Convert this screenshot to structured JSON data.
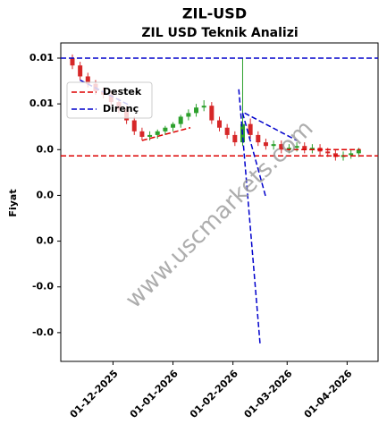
{
  "chart_data": {
    "type": "candlestick",
    "title": "ZIL-USD",
    "subtitle": "ZIL USD Teknik Analizi",
    "y_label": "Fiyat",
    "watermark": "www.uscmarkets.com",
    "up_color": "#2ca02c",
    "down_color": "#d62728",
    "x": [
      "2025-11-10",
      "2025-11-14",
      "2025-11-18",
      "2025-11-22",
      "2025-11-26",
      "2025-11-30",
      "2025-12-04",
      "2025-12-08",
      "2025-12-12",
      "2025-12-16",
      "2025-12-20",
      "2025-12-24",
      "2025-12-28",
      "2026-01-01",
      "2026-01-05",
      "2026-01-09",
      "2026-01-13",
      "2026-01-17",
      "2026-01-21",
      "2026-01-25",
      "2026-01-29",
      "2026-02-02",
      "2026-02-06",
      "2026-02-10",
      "2026-02-14",
      "2026-02-18",
      "2026-02-22",
      "2026-02-26",
      "2026-03-02",
      "2026-03-06",
      "2026-03-10",
      "2026-03-14",
      "2026-03-18",
      "2026-03-22",
      "2026-03-26",
      "2026-03-30",
      "2026-04-03",
      "2026-04-07"
    ],
    "open": [
      0.01,
      0.0096,
      0.009,
      0.0086,
      0.0082,
      0.008,
      0.0076,
      0.0072,
      0.0066,
      0.006,
      0.0057,
      0.0058,
      0.006,
      0.0062,
      0.0064,
      0.0068,
      0.007,
      0.0073,
      0.0074,
      0.0066,
      0.0062,
      0.0058,
      0.0054,
      0.0064,
      0.0058,
      0.0054,
      0.0052,
      0.0053,
      0.005,
      0.0051,
      0.0052,
      0.005,
      0.0051,
      0.0049,
      0.0048,
      0.0046,
      0.0047,
      0.0048
    ],
    "high": [
      0.0102,
      0.0098,
      0.0092,
      0.0088,
      0.0084,
      0.0082,
      0.0078,
      0.0074,
      0.0068,
      0.0062,
      0.006,
      0.0061,
      0.0063,
      0.0065,
      0.0069,
      0.0072,
      0.0075,
      0.0077,
      0.0076,
      0.0068,
      0.0064,
      0.006,
      0.01,
      0.0067,
      0.006,
      0.0056,
      0.0055,
      0.0055,
      0.0053,
      0.0054,
      0.0054,
      0.0053,
      0.0053,
      0.0051,
      0.005,
      0.0049,
      0.005,
      0.0051
    ],
    "low": [
      0.0094,
      0.0088,
      0.0084,
      0.008,
      0.0078,
      0.0074,
      0.007,
      0.0064,
      0.0058,
      0.0055,
      0.0055,
      0.0056,
      0.0058,
      0.006,
      0.0062,
      0.0066,
      0.0068,
      0.0071,
      0.0064,
      0.006,
      0.0056,
      0.0052,
      0.0052,
      0.0056,
      0.0052,
      0.005,
      0.005,
      0.0048,
      0.0048,
      0.0049,
      0.0048,
      0.0048,
      0.0047,
      0.0046,
      0.0044,
      0.0044,
      0.0045,
      0.0046
    ],
    "close": [
      0.0096,
      0.009,
      0.0086,
      0.0082,
      0.008,
      0.0076,
      0.0072,
      0.0066,
      0.006,
      0.0057,
      0.0058,
      0.006,
      0.0062,
      0.0064,
      0.0068,
      0.007,
      0.0073,
      0.0074,
      0.0066,
      0.0062,
      0.0058,
      0.0054,
      0.0064,
      0.0058,
      0.0054,
      0.0052,
      0.0053,
      0.005,
      0.0051,
      0.0052,
      0.005,
      0.0051,
      0.0049,
      0.0048,
      0.0046,
      0.0047,
      0.0048,
      0.005
    ],
    "series": [
      {
        "name": "Destek",
        "color": "#dd0000",
        "lines": [
          {
            "x": [
              "2025-11-04",
              "2026-04-17"
            ],
            "values": [
              0.00466,
              0.00466
            ]
          },
          {
            "x": [
              "2025-12-16",
              "2026-01-10"
            ],
            "values": [
              0.0055,
              0.0062
            ]
          },
          {
            "x": [
              "2026-02-28",
              "2026-04-08"
            ],
            "values": [
              0.005,
              0.005
            ]
          }
        ]
      },
      {
        "name": "Direnç",
        "color": "#0000cc",
        "lines": [
          {
            "x": [
              "2025-11-04",
              "2026-04-17"
            ],
            "values": [
              0.01,
              0.01
            ]
          },
          {
            "x": [
              "2025-11-14",
              "2025-12-10"
            ],
            "values": [
              0.0088,
              0.0074
            ]
          },
          {
            "x": [
              "2026-02-04",
              "2026-02-15"
            ],
            "values": [
              0.0083,
              -0.0056
            ]
          },
          {
            "x": [
              "2026-02-06",
              "2026-02-18"
            ],
            "values": [
              0.007,
              0.0024
            ]
          },
          {
            "x": [
              "2026-02-07",
              "2026-03-06"
            ],
            "values": [
              0.007,
              0.0055
            ]
          }
        ]
      }
    ],
    "xlim": [
      "2025-11-04",
      "2026-04-17"
    ],
    "xticks": [
      {
        "value": "2025-12-01",
        "label": "01-12-2025"
      },
      {
        "value": "2026-01-01",
        "label": "01-01-2026"
      },
      {
        "value": "2026-02-01",
        "label": "01-02-2026"
      },
      {
        "value": "2026-03-01",
        "label": "01-03-2026"
      },
      {
        "value": "2026-04-01",
        "label": "01-04-2026"
      }
    ],
    "ylim": [
      -0.00657,
      0.01083
    ],
    "yticks": [
      {
        "value": 0.01,
        "label": "0.01"
      },
      {
        "value": 0.0075,
        "label": "0.01"
      },
      {
        "value": 0.005,
        "label": "0.0"
      },
      {
        "value": 0.0025,
        "label": "0.0"
      },
      {
        "value": 0,
        "label": "0.0"
      },
      {
        "value": -0.0025,
        "label": "-0.0"
      },
      {
        "value": -0.005,
        "label": "-0.0"
      }
    ],
    "legend": "upper left"
  }
}
